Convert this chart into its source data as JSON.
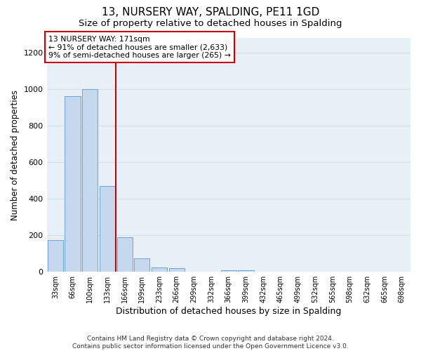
{
  "title": "13, NURSERY WAY, SPALDING, PE11 1GD",
  "subtitle": "Size of property relative to detached houses in Spalding",
  "xlabel": "Distribution of detached houses by size in Spalding",
  "ylabel": "Number of detached properties",
  "categories": [
    "33sqm",
    "66sqm",
    "100sqm",
    "133sqm",
    "166sqm",
    "199sqm",
    "233sqm",
    "266sqm",
    "299sqm",
    "332sqm",
    "366sqm",
    "399sqm",
    "432sqm",
    "465sqm",
    "499sqm",
    "532sqm",
    "565sqm",
    "598sqm",
    "632sqm",
    "665sqm",
    "698sqm"
  ],
  "values": [
    175,
    960,
    1000,
    470,
    190,
    75,
    25,
    20,
    0,
    0,
    10,
    10,
    0,
    0,
    0,
    0,
    0,
    0,
    0,
    0,
    0
  ],
  "bar_color": "#c5d8ed",
  "bar_edge_color": "#5b9bd5",
  "annotation_text": "13 NURSERY WAY: 171sqm\n← 91% of detached houses are smaller (2,633)\n9% of semi-detached houses are larger (265) →",
  "annotation_box_color": "#ffffff",
  "annotation_box_edge_color": "#cc0000",
  "vline_color": "#cc0000",
  "grid_color": "#d0dce8",
  "background_color": "#e8f0f7",
  "footer_text": "Contains HM Land Registry data © Crown copyright and database right 2024.\nContains public sector information licensed under the Open Government Licence v3.0.",
  "ylim": [
    0,
    1280
  ],
  "yticks": [
    0,
    200,
    400,
    600,
    800,
    1000,
    1200
  ],
  "title_fontsize": 11,
  "subtitle_fontsize": 9.5,
  "xlabel_fontsize": 9,
  "ylabel_fontsize": 8.5,
  "tick_fontsize": 8,
  "vline_x_index": 3.5
}
